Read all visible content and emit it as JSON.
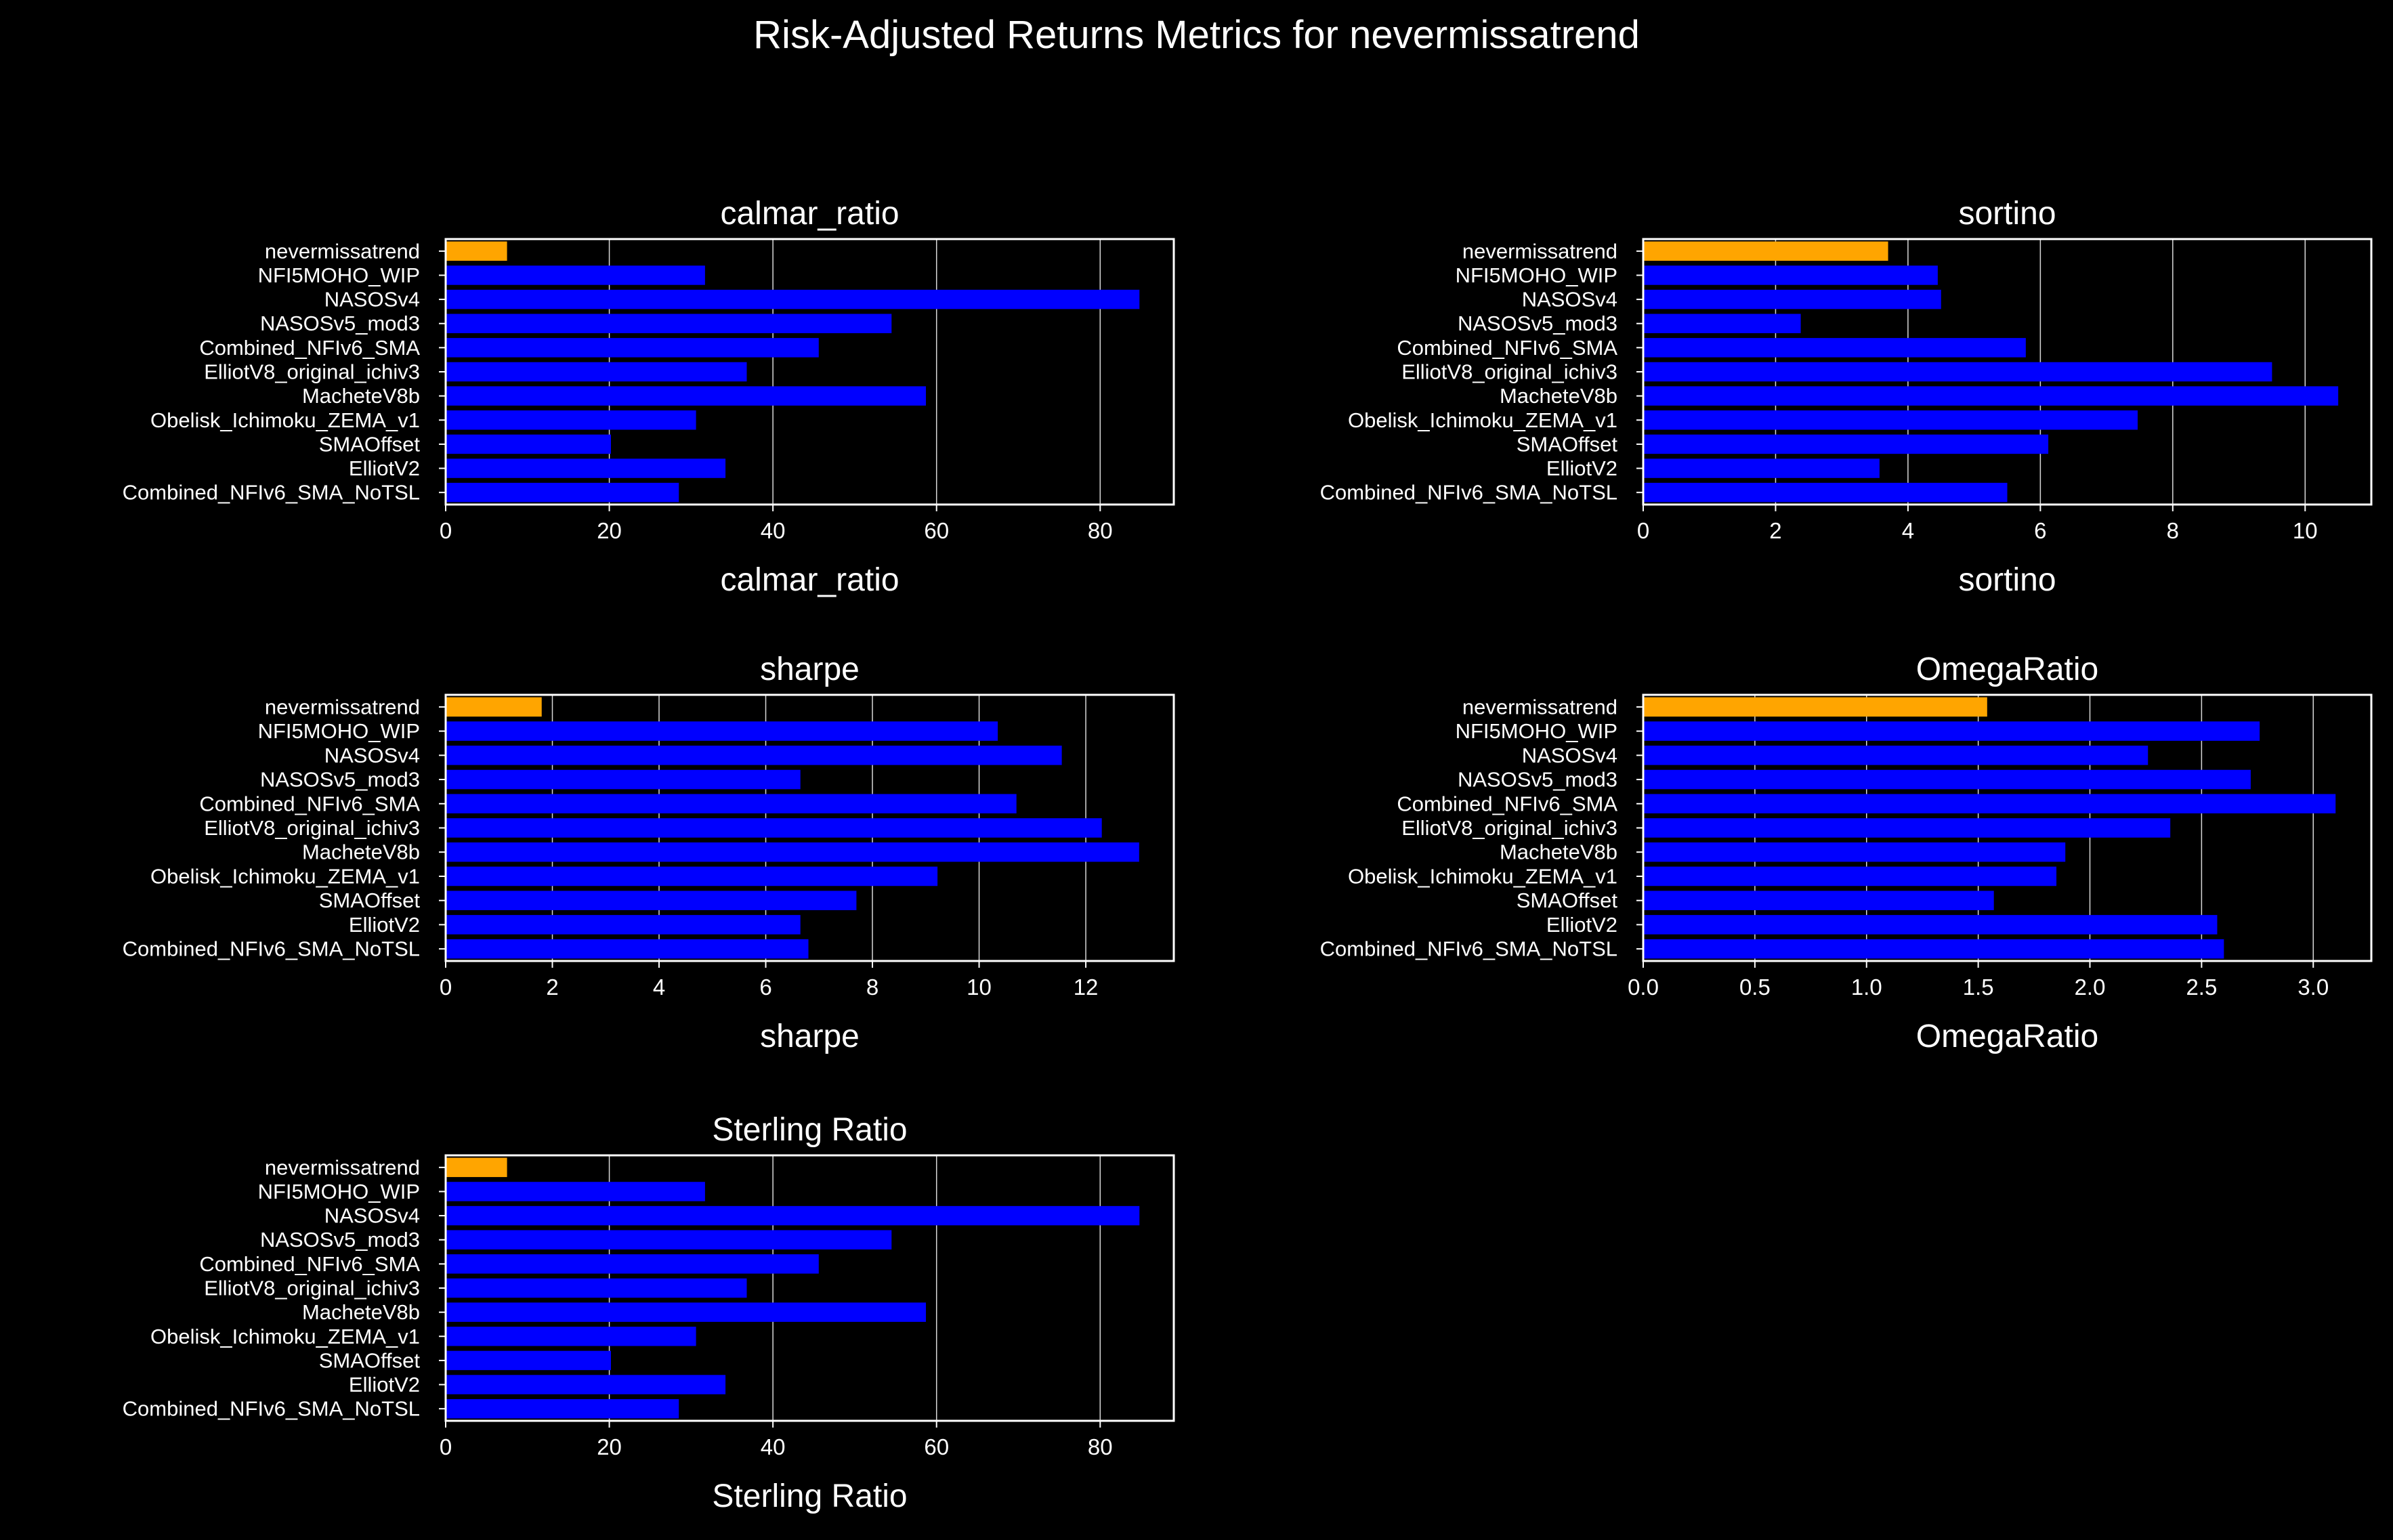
{
  "title": "Risk-Adjusted Returns Metrics for nevermissatrend",
  "colors": {
    "highlight": "#ffa500",
    "bar": "#0000ff",
    "background": "#000000",
    "axes": "#ffffff",
    "grid": "#ffffff"
  },
  "categories": [
    "nevermissatrend",
    "NFI5MOHO_WIP",
    "NASOSv4",
    "NASOSv5_mod3",
    "Combined_NFIv6_SMA",
    "ElliotV8_original_ichiv3",
    "MacheteV8b",
    "Obelisk_Ichimoku_ZEMA_v1",
    "SMAOffset",
    "ElliotV2",
    "Combined_NFIv6_SMA_NoTSL"
  ],
  "chart_data": [
    {
      "type": "bar",
      "orientation": "horizontal",
      "title": "calmar_ratio",
      "xlabel": "calmar_ratio",
      "xlim": [
        0,
        89
      ],
      "xticks": [
        0,
        20,
        40,
        60,
        80
      ],
      "grid": "vertical",
      "values": [
        7.5,
        31.7,
        84.8,
        54.5,
        45.6,
        36.8,
        58.7,
        30.6,
        20.2,
        34.2,
        28.5
      ]
    },
    {
      "type": "bar",
      "orientation": "horizontal",
      "title": "sortino",
      "xlabel": "sortino",
      "xlim": [
        0,
        11
      ],
      "xticks": [
        0,
        2,
        4,
        6,
        8,
        10
      ],
      "grid": "vertical",
      "values": [
        3.7,
        4.45,
        4.5,
        2.38,
        5.78,
        9.5,
        10.5,
        7.47,
        6.12,
        3.57,
        5.5
      ]
    },
    {
      "type": "bar",
      "orientation": "horizontal",
      "title": "sharpe",
      "xlabel": "sharpe",
      "xlim": [
        0,
        13.65
      ],
      "xticks": [
        0,
        2,
        4,
        6,
        8,
        10,
        12
      ],
      "grid": "vertical",
      "values": [
        1.8,
        10.35,
        11.55,
        6.65,
        10.7,
        12.3,
        13.0,
        9.22,
        7.7,
        6.65,
        6.8
      ]
    },
    {
      "type": "bar",
      "orientation": "horizontal",
      "title": "OmegaRatio",
      "xlabel": "OmegaRatio",
      "xlim": [
        0,
        3.26
      ],
      "xticks": [
        "0.0",
        "0.5",
        "1.0",
        "1.5",
        "2.0",
        "2.5",
        "3.0"
      ],
      "grid": "vertical",
      "values": [
        1.54,
        2.76,
        2.26,
        2.72,
        3.1,
        2.36,
        1.89,
        1.85,
        1.57,
        2.57,
        2.6
      ]
    },
    {
      "type": "bar",
      "orientation": "horizontal",
      "title": "Sterling Ratio",
      "xlabel": "Sterling Ratio",
      "xlim": [
        0,
        89
      ],
      "xticks": [
        0,
        20,
        40,
        60,
        80
      ],
      "grid": "vertical",
      "values": [
        7.5,
        31.7,
        84.8,
        54.5,
        45.6,
        36.8,
        58.7,
        30.6,
        20.2,
        34.2,
        28.5
      ]
    }
  ]
}
